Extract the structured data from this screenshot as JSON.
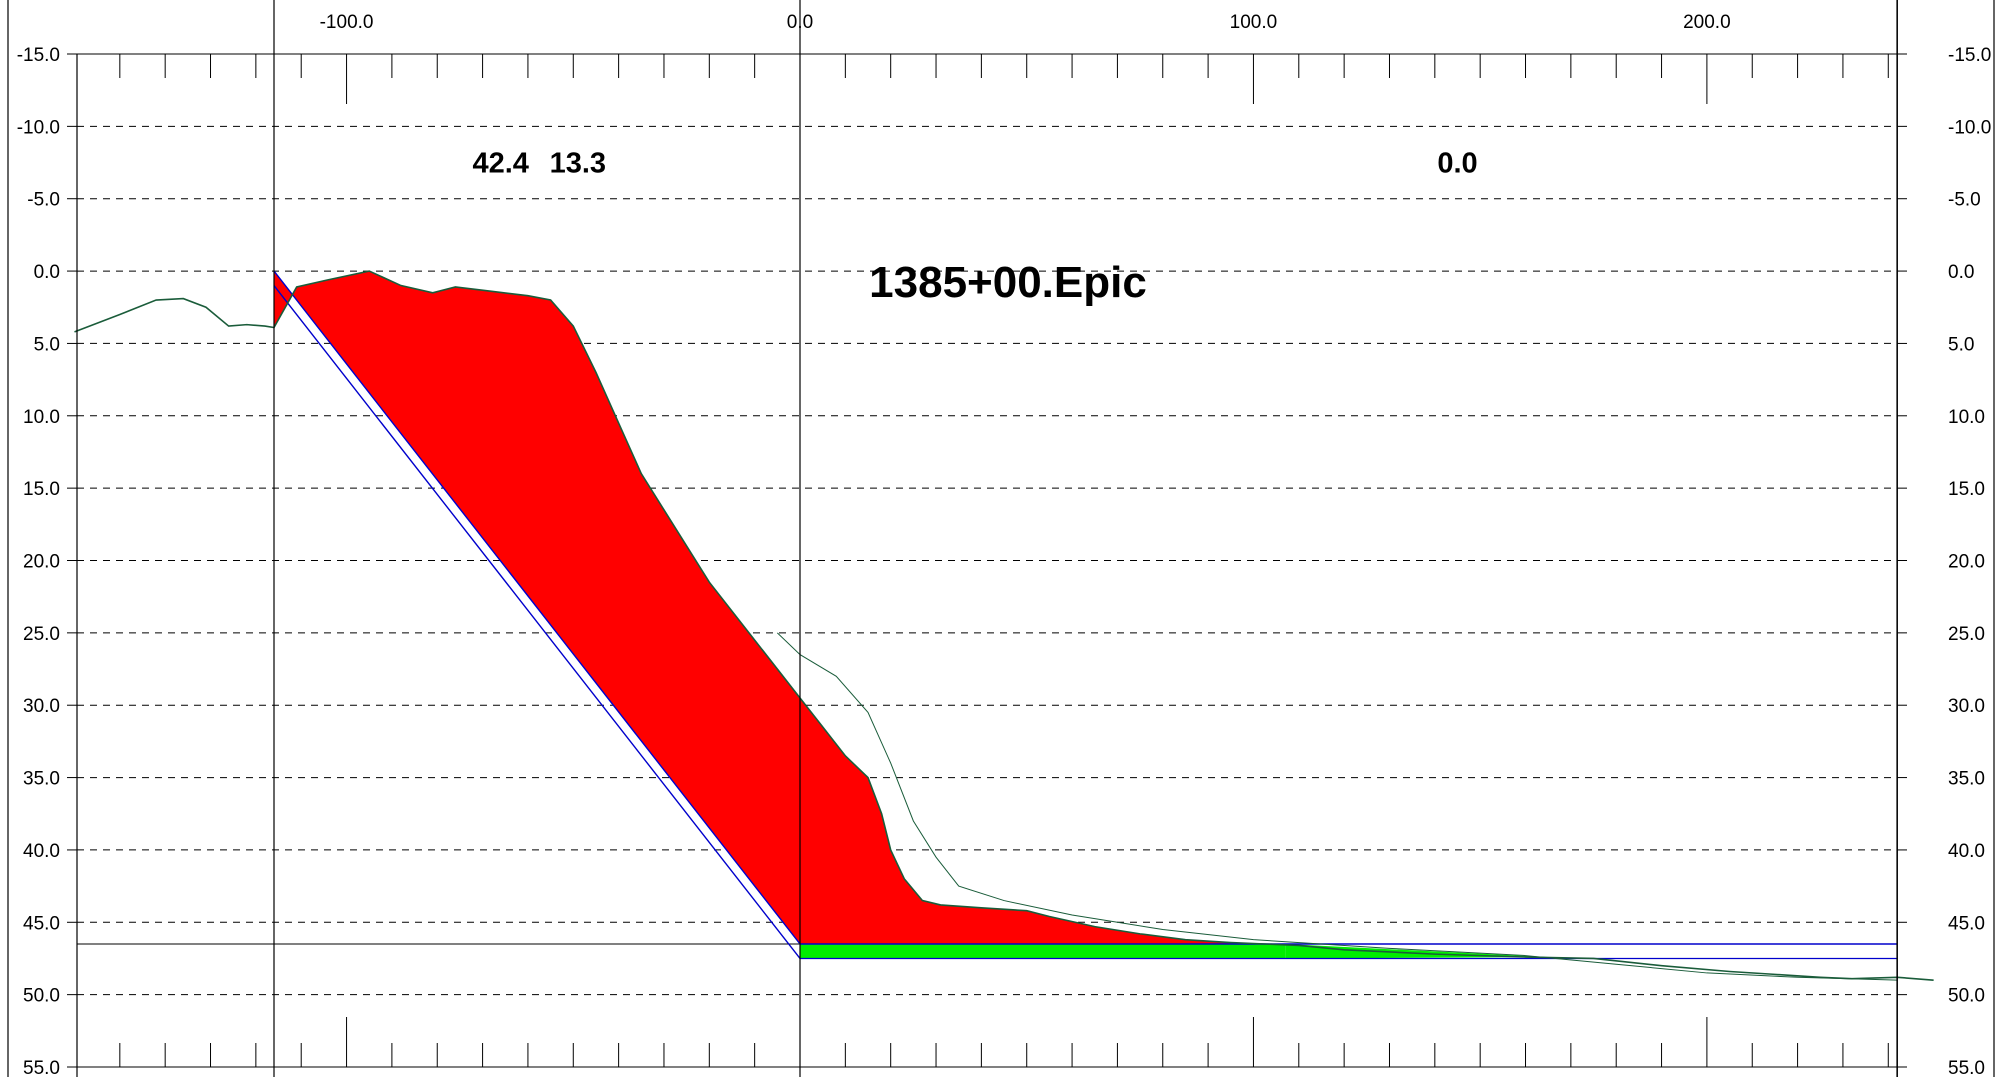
{
  "chart_data": {
    "type": "cross-section",
    "title": "1385+00.Epic",
    "x_ticks": [
      "-100.0",
      "0.0",
      "100.0",
      "200.0"
    ],
    "x_tick_values": [
      -100,
      0,
      100,
      200
    ],
    "y_ticks": [
      "-15.0",
      "-10.0",
      "-5.0",
      "0.0",
      "5.0",
      "10.0",
      "15.0",
      "20.0",
      "25.0",
      "30.0",
      "35.0",
      "40.0",
      "45.0",
      "50.0",
      "55.0"
    ],
    "y_tick_values": [
      -15,
      -10,
      -5,
      0,
      5,
      10,
      15,
      20,
      25,
      30,
      35,
      40,
      45,
      50,
      55
    ],
    "xlim": [
      -160,
      242
    ],
    "ylim": [
      55,
      -15
    ],
    "y_axis_inverted": true,
    "grid": "dashed horizontal lines at each y tick",
    "area_labels": [
      {
        "text": "42.4",
        "x": -66,
        "y": -6.8
      },
      {
        "text": "13.3",
        "x": -49,
        "y": -6.8
      },
      {
        "text": "0.0",
        "x": 145,
        "y": -6.8
      }
    ],
    "vertical_lines_x": [
      -116,
      0,
      242
    ],
    "template_elevation": 46.5,
    "subgrade_elevation": 47.5,
    "cut_slope_points": [
      [
        -116,
        0.0
      ],
      [
        0,
        46.5
      ]
    ],
    "cut_slope_offset_points": [
      [
        -116,
        1.0
      ],
      [
        0,
        47.5
      ]
    ],
    "existing_ground_points": [
      [
        -160,
        4.2
      ],
      [
        -150,
        3.0
      ],
      [
        -142,
        2.0
      ],
      [
        -136,
        1.9
      ],
      [
        -131,
        2.5
      ],
      [
        -126,
        3.8
      ],
      [
        -122,
        3.7
      ],
      [
        -118,
        3.8
      ],
      [
        -116,
        3.9
      ],
      [
        -116,
        3.9
      ],
      [
        -111,
        1.1
      ],
      [
        -104,
        0.6
      ],
      [
        -95,
        0.0
      ],
      [
        -88,
        1.0
      ],
      [
        -81,
        1.5
      ],
      [
        -76,
        1.1
      ],
      [
        -68,
        1.4
      ],
      [
        -60,
        1.7
      ],
      [
        -55,
        2.0
      ],
      [
        -50,
        3.8
      ],
      [
        -45,
        7.0
      ],
      [
        -40,
        10.5
      ],
      [
        -35,
        14.0
      ],
      [
        -28,
        17.5
      ],
      [
        -20,
        21.5
      ],
      [
        -10,
        25.5
      ],
      [
        -5,
        27.5
      ],
      [
        0,
        29.5
      ],
      [
        5,
        31.5
      ],
      [
        10,
        33.5
      ],
      [
        15,
        35.0
      ],
      [
        18,
        37.5
      ],
      [
        20,
        40.0
      ],
      [
        23,
        42.0
      ],
      [
        27,
        43.5
      ],
      [
        31,
        43.8
      ],
      [
        40,
        44.0
      ],
      [
        50,
        44.2
      ],
      [
        55,
        44.6
      ],
      [
        65,
        45.3
      ],
      [
        75,
        45.8
      ],
      [
        85,
        46.2
      ],
      [
        95,
        46.4
      ],
      [
        110,
        46.6
      ],
      [
        120,
        46.9
      ],
      [
        140,
        47.2
      ],
      [
        160,
        47.4
      ],
      [
        175,
        47.5
      ],
      [
        190,
        48.0
      ],
      [
        205,
        48.4
      ],
      [
        215,
        48.6
      ],
      [
        225,
        48.8
      ],
      [
        232,
        48.9
      ],
      [
        242,
        48.8
      ],
      [
        250,
        49.0
      ]
    ],
    "original_ground_points": [
      [
        -5,
        25.0
      ],
      [
        0,
        26.5
      ],
      [
        8,
        28.0
      ],
      [
        15,
        30.5
      ],
      [
        20,
        34.0
      ],
      [
        25,
        38.0
      ],
      [
        30,
        40.5
      ],
      [
        35,
        42.5
      ],
      [
        45,
        43.5
      ],
      [
        60,
        44.5
      ],
      [
        80,
        45.5
      ],
      [
        100,
        46.2
      ],
      [
        130,
        46.8
      ],
      [
        160,
        47.3
      ],
      [
        180,
        47.9
      ],
      [
        200,
        48.5
      ],
      [
        220,
        48.8
      ],
      [
        242,
        49.0
      ]
    ],
    "cut_fill_polygon_top": [
      [
        -116,
        3.9
      ],
      [
        -111,
        1.1
      ],
      [
        -104,
        0.6
      ],
      [
        -95,
        0.0
      ],
      [
        -88,
        1.0
      ],
      [
        -81,
        1.5
      ],
      [
        -76,
        1.1
      ],
      [
        -68,
        1.4
      ],
      [
        -60,
        1.7
      ],
      [
        -55,
        2.0
      ],
      [
        -50,
        3.8
      ],
      [
        -45,
        7.0
      ],
      [
        -40,
        10.5
      ],
      [
        -35,
        14.0
      ],
      [
        -28,
        17.5
      ],
      [
        -20,
        21.5
      ],
      [
        -10,
        25.5
      ],
      [
        -5,
        27.5
      ],
      [
        0,
        29.5
      ],
      [
        5,
        31.5
      ],
      [
        10,
        33.5
      ],
      [
        15,
        35.0
      ],
      [
        18,
        37.5
      ],
      [
        20,
        40.0
      ],
      [
        23,
        42.0
      ],
      [
        27,
        43.5
      ],
      [
        31,
        43.8
      ],
      [
        40,
        44.0
      ],
      [
        50,
        44.2
      ],
      [
        55,
        44.6
      ],
      [
        65,
        45.3
      ],
      [
        75,
        45.8
      ],
      [
        85,
        46.2
      ],
      [
        95,
        46.4
      ],
      [
        107,
        46.5
      ]
    ],
    "colors": {
      "cut_area": "#ff0000",
      "subgrade_area": "#00ee00",
      "design_line": "#0000cc",
      "ground_line": "#1a5c3a",
      "grid": "#000000"
    }
  }
}
